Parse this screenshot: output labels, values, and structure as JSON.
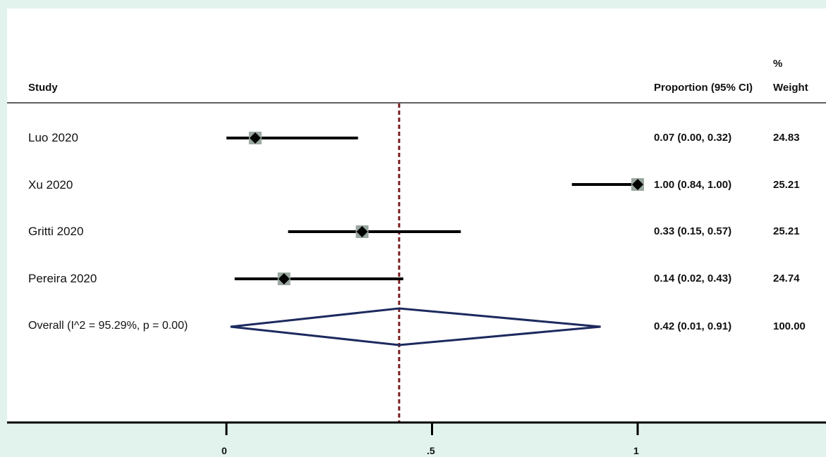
{
  "headers": {
    "study": "Study",
    "estimate": "Proportion (95% CI)",
    "weight_top": "%",
    "weight_bottom": "Weight"
  },
  "chart_data": {
    "type": "forest",
    "xlim": [
      0,
      1
    ],
    "ticks": [
      {
        "value": 0,
        "label": "0"
      },
      {
        "value": 0.5,
        "label": ".5"
      },
      {
        "value": 1,
        "label": "1"
      }
    ],
    "reference_line": 0.42,
    "studies": [
      {
        "name": "Luo 2020",
        "estimate": 0.07,
        "lower": 0.0,
        "upper": 0.32,
        "ci_text": "0.07 (0.00, 0.32)",
        "weight": "24.83"
      },
      {
        "name": "Xu 2020",
        "estimate": 1.0,
        "lower": 0.84,
        "upper": 1.0,
        "ci_text": "1.00 (0.84, 1.00)",
        "weight": "25.21"
      },
      {
        "name": "Gritti 2020",
        "estimate": 0.33,
        "lower": 0.15,
        "upper": 0.57,
        "ci_text": "0.33 (0.15, 0.57)",
        "weight": "25.21"
      },
      {
        "name": "Pereira 2020",
        "estimate": 0.14,
        "lower": 0.02,
        "upper": 0.43,
        "ci_text": "0.14 (0.02, 0.43)",
        "weight": "24.74"
      }
    ],
    "overall": {
      "name": "Overall  (I^2 = 95.29%, p = 0.00)",
      "estimate": 0.42,
      "lower": 0.01,
      "upper": 0.91,
      "ci_text": "0.42 (0.01, 0.91)",
      "weight": "100.00"
    },
    "colors": {
      "ci_line": "#000000",
      "marker": "#000000",
      "weight_box": "#9aa8a0",
      "diamond": "#1c2a5e",
      "reference": "#7a1f1f",
      "axis": "#000000",
      "header_rule": "#000000"
    }
  }
}
